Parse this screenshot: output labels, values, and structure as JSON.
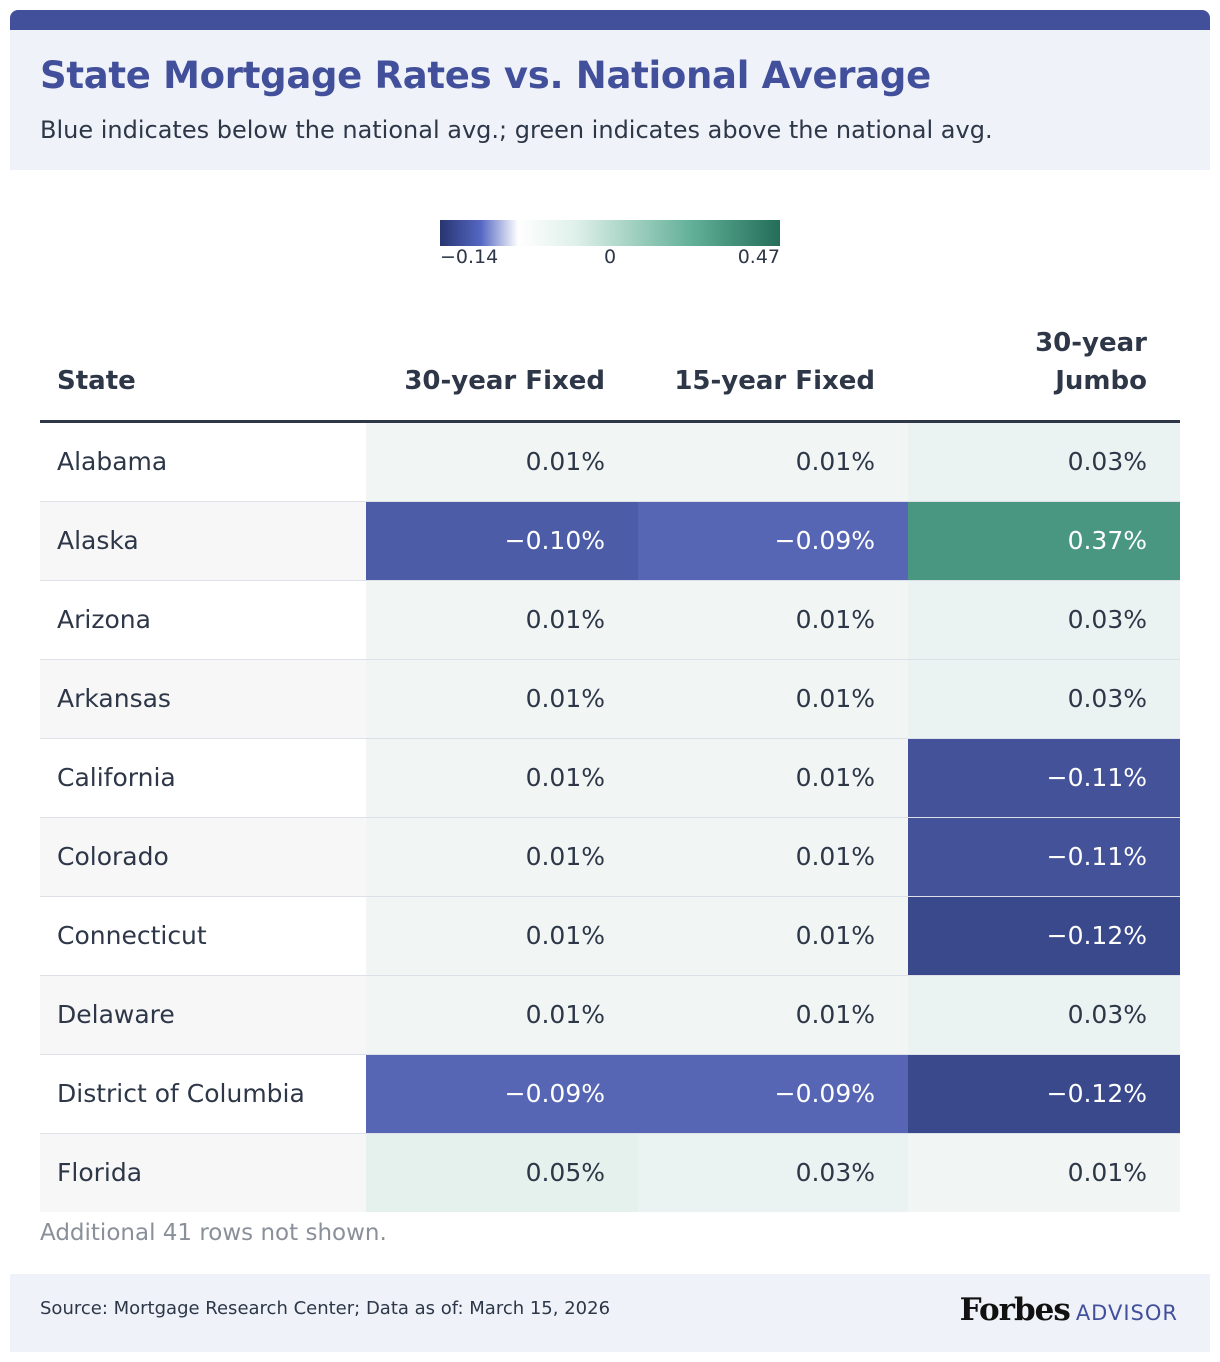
{
  "header": {
    "title": "State Mortgage Rates vs. National Average",
    "subtitle": "Blue indicates below the national avg.; green indicates above the national avg."
  },
  "colors": {
    "accent": "#42509c",
    "header_bg": "#eff2f8",
    "scale_min": "#283571",
    "scale_mid": "#ffffff",
    "scale_max": "#236d59"
  },
  "chart_data": {
    "type": "table",
    "title": "State Mortgage Rates vs. National Average",
    "subtitle": "Blue indicates below the national avg.; green indicates above the national avg.",
    "legend": {
      "min": -0.14,
      "mid": 0,
      "max": 0.47,
      "min_label": "−0.14",
      "mid_label": "0",
      "max_label": "0.47"
    },
    "columns": [
      "State",
      "30-year Fixed",
      "15-year Fixed",
      "30-year Jumbo"
    ],
    "rows": [
      {
        "state": "Alabama",
        "values": [
          0.01,
          0.01,
          0.03
        ],
        "labels": [
          "0.01%",
          "0.01%",
          "0.03%"
        ]
      },
      {
        "state": "Alaska",
        "values": [
          -0.1,
          -0.09,
          0.37
        ],
        "labels": [
          "−0.10%",
          "−0.09%",
          "0.37%"
        ]
      },
      {
        "state": "Arizona",
        "values": [
          0.01,
          0.01,
          0.03
        ],
        "labels": [
          "0.01%",
          "0.01%",
          "0.03%"
        ]
      },
      {
        "state": "Arkansas",
        "values": [
          0.01,
          0.01,
          0.03
        ],
        "labels": [
          "0.01%",
          "0.01%",
          "0.03%"
        ]
      },
      {
        "state": "California",
        "values": [
          0.01,
          0.01,
          -0.11
        ],
        "labels": [
          "0.01%",
          "0.01%",
          "−0.11%"
        ]
      },
      {
        "state": "Colorado",
        "values": [
          0.01,
          0.01,
          -0.11
        ],
        "labels": [
          "0.01%",
          "0.01%",
          "−0.11%"
        ]
      },
      {
        "state": "Connecticut",
        "values": [
          0.01,
          0.01,
          -0.12
        ],
        "labels": [
          "0.01%",
          "0.01%",
          "−0.12%"
        ]
      },
      {
        "state": "Delaware",
        "values": [
          0.01,
          0.01,
          0.03
        ],
        "labels": [
          "0.01%",
          "0.01%",
          "0.03%"
        ]
      },
      {
        "state": "District of Columbia",
        "values": [
          -0.09,
          -0.09,
          -0.12
        ],
        "labels": [
          "−0.09%",
          "−0.09%",
          "−0.12%"
        ]
      },
      {
        "state": "Florida",
        "values": [
          0.05,
          0.03,
          0.01
        ],
        "labels": [
          "0.05%",
          "0.03%",
          "0.01%"
        ]
      }
    ],
    "note": "Additional 41 rows not shown."
  },
  "footer": {
    "source": "Source: Mortgage Research Center; Data as of: March 15, 2026",
    "brand_main": "Forbes",
    "brand_sub": "ADVISOR"
  }
}
